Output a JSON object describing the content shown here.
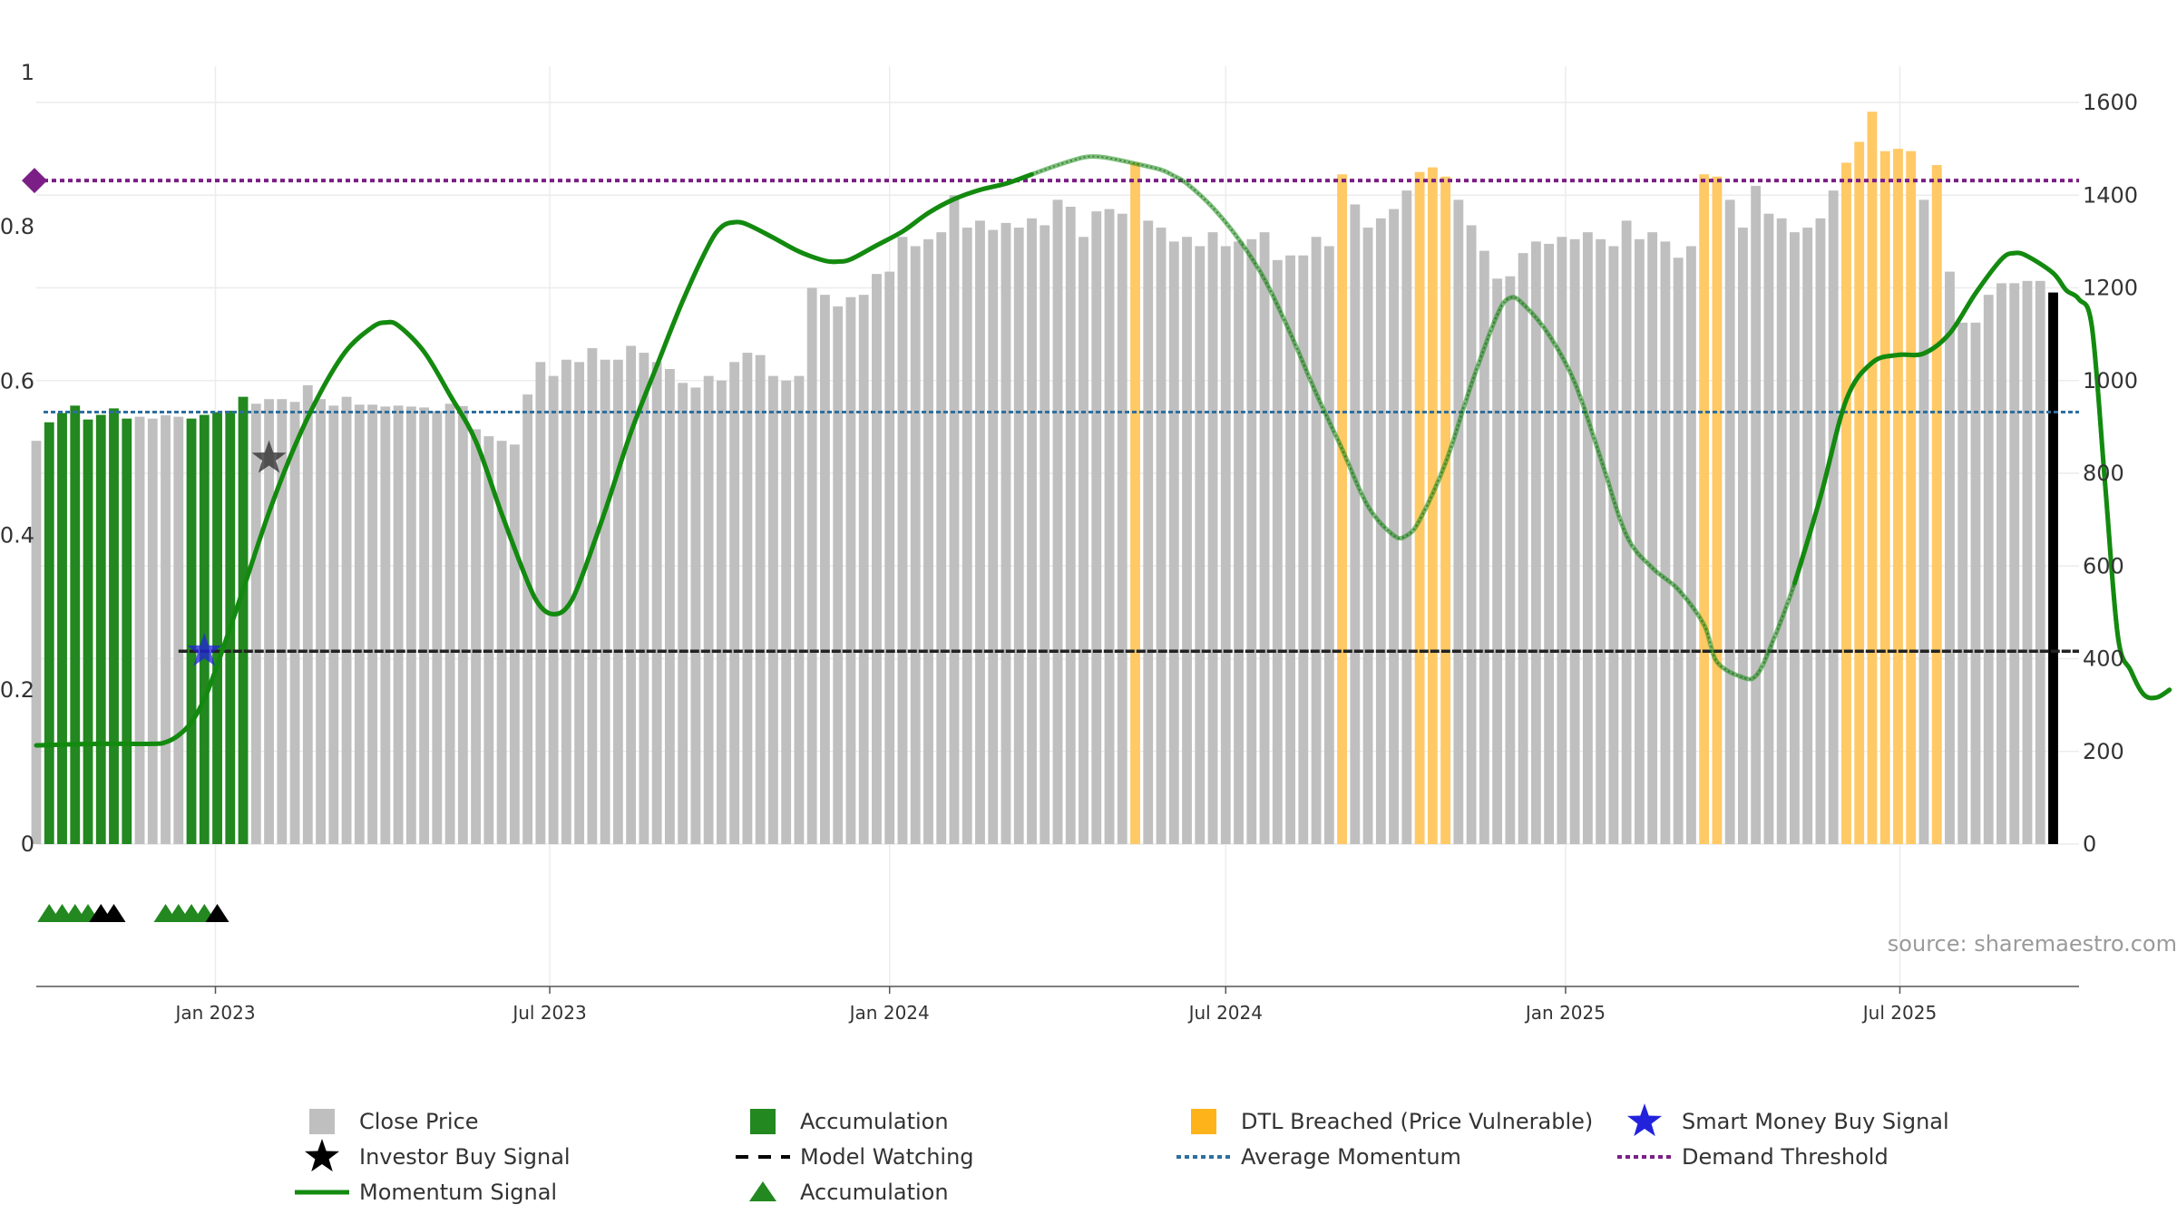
{
  "source_label": "source: sharemaestro.com",
  "chart_data": {
    "type": "bar",
    "title": "",
    "xlabel": "",
    "ylabel_left": "",
    "ylabel_right": "",
    "left_axis": {
      "range": [
        0,
        1
      ],
      "ticks": [
        0,
        0.2,
        0.4,
        0.6,
        0.8,
        1
      ],
      "tick_labels": [
        "0",
        "0.2",
        "0.4",
        "0.6",
        "0.8",
        "1"
      ]
    },
    "right_axis": {
      "range": [
        0,
        1600
      ],
      "ticks": [
        0,
        200,
        400,
        600,
        800,
        1000,
        1200,
        1400,
        1600
      ],
      "tick_labels": [
        "0",
        "200",
        "400",
        "600",
        "800",
        "1000",
        "1200",
        "1400",
        "1600"
      ]
    },
    "x_axis": {
      "range": [
        "2022-09-26",
        "2025-10-06"
      ],
      "ticks": [
        "2023-01-01",
        "2023-07-01",
        "2024-01-01",
        "2024-07-01",
        "2025-01-01",
        "2025-07-01"
      ],
      "tick_labels": [
        "Jan 2023",
        "Jul 2023",
        "Jan 2024",
        "Jul 2024",
        "Jan 2025",
        "Jul 2025"
      ]
    },
    "grid": true,
    "legend_position": "bottom",
    "colors": {
      "close": "#bfbfbf",
      "accumulation": "#22881f",
      "dtl": "#ffc966",
      "momentum": "#138a0f",
      "model_watching": "#222222",
      "average_momentum": "#2e6f9e",
      "demand_threshold": "#7b1f86",
      "smart_money": "#2222dd",
      "investor_star": "#333333"
    },
    "bars": {
      "start_date": "2022-09-26",
      "interval_days": 7,
      "values": [
        870,
        910,
        930,
        946,
        916,
        926,
        940,
        918,
        922,
        918,
        925,
        922,
        918,
        926,
        932,
        935,
        965,
        950,
        960,
        960,
        954,
        990,
        960,
        946,
        965,
        948,
        948,
        944,
        946,
        944,
        942,
        934,
        950,
        945,
        895,
        880,
        870,
        862,
        970,
        1040,
        1010,
        1045,
        1040,
        1070,
        1045,
        1045,
        1075,
        1060,
        1040,
        1025,
        995,
        985,
        1010,
        1000,
        1040,
        1060,
        1055,
        1010,
        1000,
        1010,
        1200,
        1185,
        1160,
        1180,
        1185,
        1230,
        1235,
        1310,
        1290,
        1305,
        1320,
        1400,
        1330,
        1345,
        1325,
        1340,
        1330,
        1350,
        1335,
        1390,
        1375,
        1310,
        1365,
        1370,
        1360,
        1470,
        1345,
        1330,
        1300,
        1310,
        1290,
        1320,
        1290,
        1300,
        1305,
        1320,
        1260,
        1270,
        1270,
        1310,
        1290,
        1445,
        1380,
        1330,
        1350,
        1370,
        1410,
        1450,
        1460,
        1440,
        1390,
        1335,
        1280,
        1220,
        1225,
        1275,
        1300,
        1295,
        1310,
        1305,
        1320,
        1305,
        1290,
        1345,
        1305,
        1320,
        1300,
        1265,
        1290,
        1445,
        1440,
        1390,
        1330,
        1420,
        1360,
        1350,
        1320,
        1330,
        1350,
        1410,
        1470,
        1515,
        1580,
        1495,
        1500,
        1495,
        1390,
        1465,
        1235,
        1125,
        1125,
        1185,
        1210,
        1210,
        1215,
        1215,
        1190
      ],
      "state": [
        "close",
        "acc",
        "acc",
        "acc",
        "acc",
        "acc",
        "acc",
        "acc",
        "close",
        "close",
        "close",
        "close",
        "acc",
        "acc",
        "acc",
        "acc",
        "acc",
        "close",
        "close",
        "close",
        "close",
        "close",
        "close",
        "close",
        "close",
        "close",
        "close",
        "close",
        "close",
        "close",
        "close",
        "close",
        "close",
        "close",
        "close",
        "close",
        "close",
        "close",
        "close",
        "close",
        "close",
        "close",
        "close",
        "close",
        "close",
        "close",
        "close",
        "close",
        "close",
        "close",
        "close",
        "close",
        "close",
        "close",
        "close",
        "close",
        "close",
        "close",
        "close",
        "close",
        "close",
        "close",
        "close",
        "close",
        "close",
        "close",
        "close",
        "close",
        "close",
        "close",
        "close",
        "close",
        "close",
        "close",
        "close",
        "close",
        "close",
        "close",
        "close",
        "close",
        "close",
        "close",
        "close",
        "close",
        "close",
        "dtl",
        "close",
        "close",
        "close",
        "close",
        "close",
        "close",
        "close",
        "close",
        "close",
        "close",
        "close",
        "close",
        "close",
        "close",
        "close",
        "dtl",
        "close",
        "close",
        "close",
        "close",
        "close",
        "dtl",
        "dtl",
        "dtl",
        "close",
        "close",
        "close",
        "close",
        "close",
        "close",
        "close",
        "close",
        "close",
        "close",
        "close",
        "close",
        "close",
        "close",
        "close",
        "close",
        "close",
        "close",
        "close",
        "dtl",
        "dtl",
        "close",
        "close",
        "close",
        "close",
        "close",
        "close",
        "close",
        "close",
        "close",
        "dtl",
        "dtl",
        "dtl",
        "dtl",
        "dtl",
        "dtl",
        "close",
        "dtl",
        "close",
        "close",
        "close",
        "close",
        "close",
        "close",
        "close",
        "close"
      ]
    },
    "momentum_signal": {
      "solid_segments": [
        [
          0,
          45
        ],
        [
          80,
          128
        ],
        [
          155,
          163
        ]
      ],
      "points": [
        [
          "2022-09-26",
          0.128
        ],
        [
          "2022-10-10",
          0.129
        ],
        [
          "2022-10-31",
          0.13
        ],
        [
          "2022-11-28",
          0.13
        ],
        [
          "2022-12-05",
          0.132
        ],
        [
          "2022-12-12",
          0.141
        ],
        [
          "2022-12-19",
          0.158
        ],
        [
          "2022-12-26",
          0.188
        ],
        [
          "2023-01-02",
          0.232
        ],
        [
          "2023-01-16",
          0.33
        ],
        [
          "2023-01-30",
          0.43
        ],
        [
          "2023-02-13",
          0.516
        ],
        [
          "2023-02-27",
          0.586
        ],
        [
          "2023-03-13",
          0.64
        ],
        [
          "2023-03-27",
          0.67
        ],
        [
          "2023-04-03",
          0.676
        ],
        [
          "2023-04-10",
          0.672
        ],
        [
          "2023-04-24",
          0.638
        ],
        [
          "2023-05-08",
          0.582
        ],
        [
          "2023-05-22",
          0.522
        ],
        [
          "2023-06-05",
          0.428
        ],
        [
          "2023-06-19",
          0.34
        ],
        [
          "2023-06-26",
          0.308
        ],
        [
          "2023-07-03",
          0.298
        ],
        [
          "2023-07-10",
          0.306
        ],
        [
          "2023-07-17",
          0.338
        ],
        [
          "2023-07-31",
          0.432
        ],
        [
          "2023-08-14",
          0.534
        ],
        [
          "2023-08-28",
          0.62
        ],
        [
          "2023-09-11",
          0.704
        ],
        [
          "2023-09-25",
          0.776
        ],
        [
          "2023-10-02",
          0.8
        ],
        [
          "2023-10-09",
          0.806
        ],
        [
          "2023-10-16",
          0.803
        ],
        [
          "2023-10-30",
          0.786
        ],
        [
          "2023-11-13",
          0.768
        ],
        [
          "2023-11-27",
          0.756
        ],
        [
          "2023-12-04",
          0.755
        ],
        [
          "2023-12-11",
          0.758
        ],
        [
          "2023-12-25",
          0.776
        ],
        [
          "2024-01-08",
          0.794
        ],
        [
          "2024-01-22",
          0.818
        ],
        [
          "2024-02-05",
          0.836
        ],
        [
          "2024-02-19",
          0.848
        ],
        [
          "2024-03-04",
          0.856
        ],
        [
          "2024-03-18",
          0.868
        ],
        [
          "2024-04-01",
          0.88
        ],
        [
          "2024-04-15",
          0.89
        ],
        [
          "2024-04-22",
          0.891
        ],
        [
          "2024-04-29",
          0.889
        ],
        [
          "2024-05-13",
          0.882
        ],
        [
          "2024-05-27",
          0.874
        ],
        [
          "2024-06-03",
          0.866
        ],
        [
          "2024-06-10",
          0.856
        ],
        [
          "2024-06-24",
          0.825
        ],
        [
          "2024-07-08",
          0.784
        ],
        [
          "2024-07-22",
          0.732
        ],
        [
          "2024-08-05",
          0.662
        ],
        [
          "2024-08-19",
          0.584
        ],
        [
          "2024-09-02",
          0.512
        ],
        [
          "2024-09-16",
          0.438
        ],
        [
          "2024-09-30",
          0.4
        ],
        [
          "2024-10-07",
          0.4
        ],
        [
          "2024-10-14",
          0.42
        ],
        [
          "2024-10-28",
          0.494
        ],
        [
          "2024-11-11",
          0.596
        ],
        [
          "2024-11-25",
          0.686
        ],
        [
          "2024-12-02",
          0.708
        ],
        [
          "2024-12-09",
          0.7
        ],
        [
          "2024-12-23",
          0.66
        ],
        [
          "2025-01-06",
          0.598
        ],
        [
          "2025-01-20",
          0.5
        ],
        [
          "2025-02-03",
          0.4
        ],
        [
          "2025-02-17",
          0.358
        ],
        [
          "2025-03-03",
          0.33
        ],
        [
          "2025-03-17",
          0.284
        ],
        [
          "2025-03-24",
          0.236
        ],
        [
          "2025-04-07",
          0.216
        ],
        [
          "2025-04-14",
          0.218
        ],
        [
          "2025-04-21",
          0.25
        ],
        [
          "2025-05-05",
          0.338
        ],
        [
          "2025-05-19",
          0.45
        ],
        [
          "2025-06-02",
          0.576
        ],
        [
          "2025-06-16",
          0.624
        ],
        [
          "2025-06-30",
          0.634
        ],
        [
          "2025-07-14",
          0.636
        ],
        [
          "2025-07-28",
          0.662
        ],
        [
          "2025-08-11",
          0.714
        ],
        [
          "2025-08-25",
          0.758
        ],
        [
          "2025-09-01",
          0.766
        ],
        [
          "2025-09-08",
          0.762
        ],
        [
          "2025-09-22",
          0.74
        ],
        [
          "2025-09-29",
          0.718
        ],
        [
          "2025-10-06",
          0.706
        ],
        [
          "2025-10-13",
          0.67
        ],
        [
          "2025-10-20",
          0.47
        ],
        [
          "2025-10-27",
          0.27
        ],
        [
          "2025-11-03",
          0.225
        ],
        [
          "2025-11-10",
          0.194
        ],
        [
          "2025-11-17",
          0.19
        ],
        [
          "2025-11-24",
          0.2
        ]
      ]
    },
    "model_watching": {
      "value": 0.25,
      "from": "2022-12-12",
      "to": "2025-11-24"
    },
    "average_momentum": {
      "value": 0.56
    },
    "demand_threshold": {
      "value": 0.86
    },
    "smart_money_buy_signal": {
      "date": "2022-12-26",
      "value": 0.25
    },
    "investor_buy_signal": {
      "date": "2023-01-30",
      "value": 0.5
    },
    "accumulation_markers": [
      {
        "date": "2022-10-03",
        "type": "accumulation"
      },
      {
        "date": "2022-10-10",
        "type": "accumulation"
      },
      {
        "date": "2022-10-17",
        "type": "accumulation"
      },
      {
        "date": "2022-10-24",
        "type": "accumulation"
      },
      {
        "date": "2022-10-31",
        "type": "investor"
      },
      {
        "date": "2022-11-07",
        "type": "investor"
      },
      {
        "date": "2022-12-05",
        "type": "accumulation"
      },
      {
        "date": "2022-12-12",
        "type": "accumulation"
      },
      {
        "date": "2022-12-19",
        "type": "accumulation"
      },
      {
        "date": "2022-12-26",
        "type": "accumulation"
      },
      {
        "date": "2023-01-02",
        "type": "investor"
      }
    ]
  },
  "legend": [
    {
      "label": "Close Price",
      "icon": "square-grey"
    },
    {
      "label": "Accumulation",
      "icon": "square-green"
    },
    {
      "label": "DTL Breached (Price Vulnerable)",
      "icon": "square-orange"
    },
    {
      "label": "Smart Money Buy Signal",
      "icon": "star-blue"
    },
    {
      "label": "Investor Buy Signal",
      "icon": "star-black"
    },
    {
      "label": "Model Watching",
      "icon": "dash-black"
    },
    {
      "label": "Average Momentum",
      "icon": "dot-blue"
    },
    {
      "label": "Demand Threshold",
      "icon": "dot-purple"
    },
    {
      "label": "Momentum Signal",
      "icon": "line-green"
    },
    {
      "label": "Accumulation",
      "icon": "triangle-green"
    }
  ]
}
